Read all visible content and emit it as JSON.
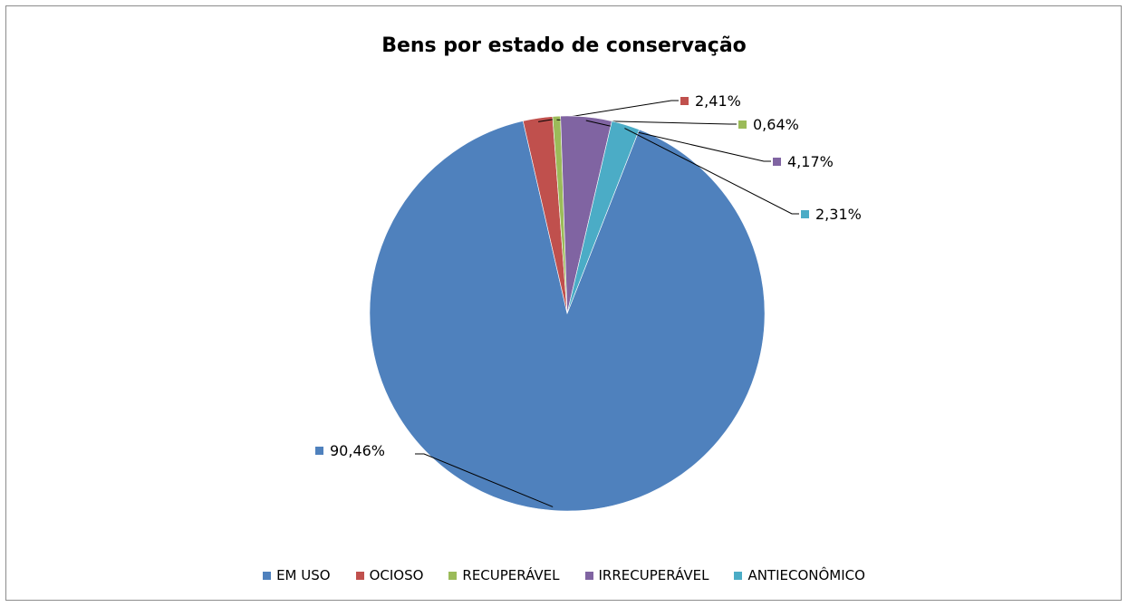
{
  "chart_data": {
    "type": "pie",
    "title": "Bens por estado de conservação",
    "categories": [
      "EM USO",
      "OCIOSO",
      "RECUPERÁVEL",
      "IRRECUPERÁVEL",
      "ANTIECONÔMICO"
    ],
    "values": [
      90.46,
      2.41,
      0.64,
      4.17,
      2.31
    ],
    "data_labels": [
      "90,46%",
      "2,41%",
      "0,64%",
      "4,17%",
      "2,31%"
    ],
    "colors": [
      "#4f81bd",
      "#c0504d",
      "#9bbb59",
      "#8064a2",
      "#4bacc6"
    ],
    "legend_position": "bottom"
  }
}
